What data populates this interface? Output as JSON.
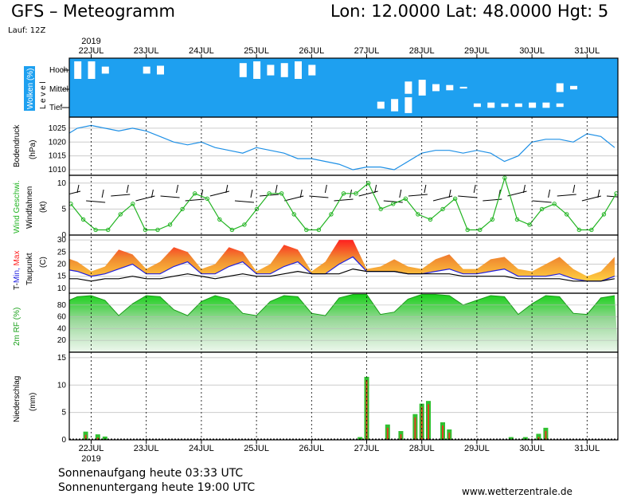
{
  "header": {
    "title": "GFS – Meteogramm",
    "coords": "Lon: 12.0000 Lat: 48.0000 Hgt: 5",
    "run": "Lauf: 12Z"
  },
  "footer": {
    "sunrise": "Sonnenaufgang heute 03:33 UTC",
    "sunset": "Sonnenuntergang heute 19:00 UTC",
    "website": "www.wetterzentrale.de"
  },
  "colors": {
    "cloud_bg": "#1ea0f0",
    "pressure": "#1e90e6",
    "wind": "#22b422",
    "tmax": "#ff2020",
    "tmin": "#2020e0",
    "rh": "#18d018",
    "precip_bar": "#30c030",
    "precip_core": "#e04020"
  },
  "chart_data": [
    {
      "panel": "clouds",
      "type": "heatmap",
      "ylabel": "Wolken (%)",
      "ylabel2": "L e v e l",
      "levels": [
        "Hoch",
        "Mittel",
        "Tief"
      ],
      "x_start": "21JUL 12Z",
      "step_hours": 6,
      "hoch": [
        60,
        100,
        100,
        40,
        0,
        0,
        40,
        50,
        0,
        0,
        0,
        0,
        0,
        80,
        100,
        60,
        80,
        100,
        60,
        0,
        0,
        0,
        0,
        0,
        0,
        0,
        0,
        0,
        0,
        0,
        0,
        0,
        0,
        0,
        0,
        0,
        0,
        0,
        0,
        0,
        0
      ],
      "mittel": [
        0,
        0,
        0,
        0,
        0,
        0,
        0,
        0,
        0,
        0,
        0,
        0,
        0,
        0,
        0,
        0,
        0,
        0,
        0,
        0,
        0,
        0,
        0,
        0,
        0,
        70,
        90,
        40,
        30,
        10,
        0,
        0,
        0,
        0,
        0,
        0,
        50,
        20,
        0,
        0,
        0
      ],
      "tief": [
        0,
        0,
        0,
        0,
        0,
        0,
        0,
        0,
        0,
        0,
        0,
        0,
        0,
        0,
        0,
        0,
        0,
        0,
        0,
        0,
        0,
        0,
        0,
        40,
        70,
        90,
        0,
        0,
        0,
        0,
        20,
        30,
        20,
        20,
        30,
        30,
        20,
        0,
        0,
        0,
        0
      ]
    },
    {
      "panel": "pressure",
      "type": "line",
      "ylabel": "Bodendruck",
      "unit": "(hPa)",
      "yticks": [
        1010,
        1015,
        1020,
        1025
      ],
      "ylim": [
        1008,
        1029
      ],
      "x_start": "21JUL 12Z",
      "step_hours": 6,
      "values": [
        1022,
        1025,
        1026,
        1025,
        1024,
        1025,
        1024,
        1022,
        1020,
        1019,
        1020,
        1018,
        1017,
        1016,
        1018,
        1017,
        1016,
        1014,
        1014,
        1013,
        1012,
        1010,
        1011,
        1011,
        1010,
        1013,
        1016,
        1017,
        1017,
        1016,
        1017,
        1016,
        1013,
        1015,
        1020,
        1021,
        1021,
        1020,
        1023,
        1022,
        1018
      ]
    },
    {
      "panel": "wind",
      "type": "line",
      "ylabel": "Wind Geschwi.",
      "ylabel2": "Windfahnen",
      "unit": "(kt)",
      "yticks": [
        0,
        5,
        10
      ],
      "ylim": [
        0,
        11.5
      ],
      "x_start": "21JUL 12Z",
      "step_hours": 6,
      "values": [
        6,
        3,
        1,
        1,
        4,
        6,
        1,
        1,
        2,
        5,
        8,
        7,
        3,
        1,
        2,
        5,
        8,
        8,
        4,
        1,
        1,
        4,
        8,
        8,
        10,
        5,
        6,
        7,
        4,
        3,
        5,
        7,
        1,
        1,
        3,
        11,
        3,
        2,
        5,
        6,
        4,
        1,
        1,
        4,
        8
      ]
    },
    {
      "panel": "temperature",
      "type": "area",
      "ylabel": "T-Min, Max",
      "ylabel2": "Taupunkt",
      "unit": "(C)",
      "yticks": [
        10,
        15,
        20,
        25,
        30
      ],
      "ylim": [
        8,
        32
      ],
      "x_start": "21JUL 12Z",
      "step_hours": 6,
      "series": [
        {
          "name": "T-Max",
          "values": [
            23,
            21,
            17,
            19,
            26,
            24,
            18,
            21,
            27,
            25,
            18,
            20,
            27,
            25,
            17,
            20,
            28,
            26,
            17,
            21,
            30,
            30,
            18,
            19,
            22,
            19,
            18,
            22,
            24,
            18,
            18,
            22,
            23,
            18,
            17,
            20,
            23,
            18,
            15,
            17,
            23
          ]
        },
        {
          "name": "T-Min",
          "values": [
            18,
            17,
            15,
            16,
            18,
            20,
            16,
            16,
            19,
            21,
            16,
            16,
            19,
            21,
            16,
            16,
            19,
            21,
            16,
            16,
            20,
            23,
            17,
            17,
            17,
            16,
            16,
            17,
            18,
            16,
            16,
            17,
            18,
            15,
            15,
            15,
            16,
            14,
            13,
            13,
            15
          ]
        },
        {
          "name": "Taupunkt",
          "values": [
            14,
            14,
            13,
            14,
            14,
            15,
            14,
            14,
            15,
            16,
            15,
            14,
            15,
            16,
            15,
            15,
            16,
            17,
            16,
            16,
            16,
            18,
            17,
            17,
            17,
            16,
            16,
            16,
            16,
            15,
            15,
            15,
            15,
            14,
            14,
            14,
            14,
            13,
            13,
            13,
            14
          ]
        }
      ]
    },
    {
      "panel": "humidity",
      "type": "area",
      "ylabel": "2m RF (%)",
      "yticks": [
        20,
        40,
        60,
        80
      ],
      "ylim": [
        0,
        100
      ],
      "x_start": "21JUL 12Z",
      "step_hours": 6,
      "values": [
        84,
        94,
        96,
        88,
        62,
        82,
        96,
        94,
        72,
        62,
        86,
        96,
        90,
        66,
        62,
        86,
        96,
        94,
        66,
        62,
        92,
        98,
        98,
        64,
        68,
        90,
        98,
        98,
        96,
        80,
        88,
        96,
        94,
        64,
        82,
        96,
        94,
        66,
        64,
        92,
        96
      ]
    },
    {
      "panel": "precipitation",
      "type": "bar",
      "ylabel": "Niederschlag",
      "unit": "(mm)",
      "yticks": [
        0,
        5,
        10,
        15
      ],
      "ylim": [
        0,
        16
      ],
      "values": [
        {
          "day": -0.1,
          "v": 1.5
        },
        {
          "day": 0.12,
          "v": 1.0
        },
        {
          "day": 0.25,
          "v": 0.6
        },
        {
          "day": 4.88,
          "v": 0.5
        },
        {
          "day": 5.0,
          "v": 11.5
        },
        {
          "day": 5.38,
          "v": 2.8
        },
        {
          "day": 5.62,
          "v": 1.6
        },
        {
          "day": 5.88,
          "v": 4.7
        },
        {
          "day": 6.0,
          "v": 6.6
        },
        {
          "day": 6.12,
          "v": 7.1
        },
        {
          "day": 6.38,
          "v": 3.2
        },
        {
          "day": 6.5,
          "v": 1.9
        },
        {
          "day": 7.62,
          "v": 0.5
        },
        {
          "day": 7.88,
          "v": 0.5
        },
        {
          "day": 8.12,
          "v": 1.1
        },
        {
          "day": 8.25,
          "v": 2.2
        }
      ]
    },
    {
      "panel": "time_axis",
      "year": "2019",
      "days": [
        "22JUL",
        "23JUL",
        "24JUL",
        "25JUL",
        "26JUL",
        "27JUL",
        "28JUL",
        "29JUL",
        "30JUL",
        "31JUL"
      ]
    }
  ]
}
